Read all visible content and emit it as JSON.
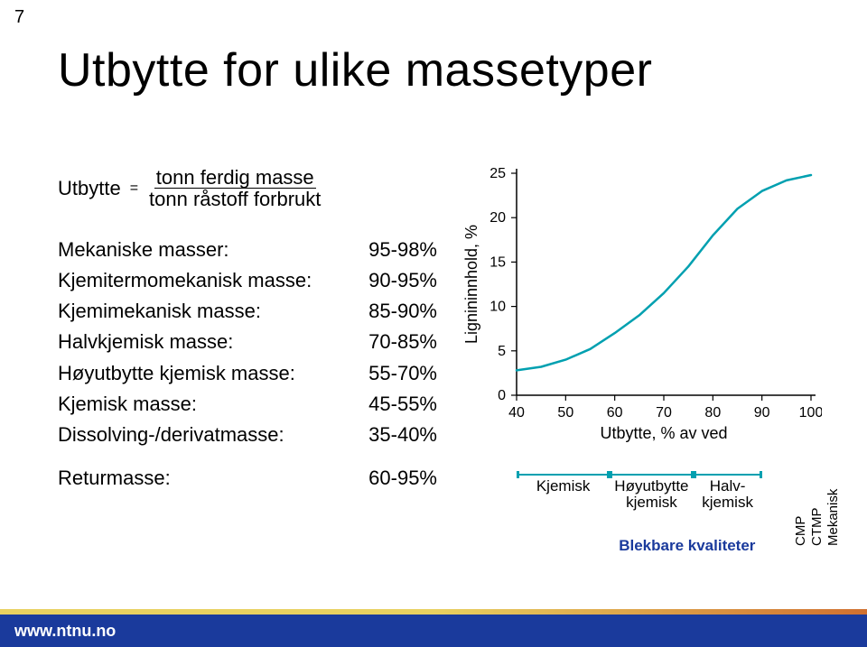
{
  "page_number": "7",
  "title": "Utbytte for ulike massetyper",
  "formula": {
    "lhs": "Utbytte",
    "num": "tonn ferdig masse",
    "den": "tonn råstoff forbrukt"
  },
  "rows": [
    {
      "label": "Mekaniske masser:",
      "value": "95-98%"
    },
    {
      "label": "Kjemitermomekanisk masse:",
      "value": "90-95%"
    },
    {
      "label": "Kjemimekanisk masse:",
      "value": "85-90%"
    },
    {
      "label": "Halvkjemisk masse:",
      "value": "70-85%"
    },
    {
      "label": "Høyutbytte kjemisk masse:",
      "value": "55-70%"
    },
    {
      "label": "Kjemisk masse:",
      "value": "45-55%"
    },
    {
      "label": "Dissolving-/derivatmasse:",
      "value": "35-40%"
    }
  ],
  "retur": {
    "label": "Returmasse:",
    "value": "60-95%"
  },
  "chart": {
    "type": "line",
    "xlabel": "Utbytte, % av ved",
    "ylabel": "Lignininnhold, %",
    "xlim": [
      40,
      100
    ],
    "ylim": [
      0,
      25
    ],
    "xticks": [
      40,
      50,
      60,
      70,
      80,
      90,
      100
    ],
    "yticks": [
      0,
      5,
      10,
      15,
      20,
      25
    ],
    "line_color": "#00a0b0",
    "line_width": 2.5,
    "axis_color": "#000000",
    "label_fontsize": 18,
    "tick_fontsize": 16,
    "points": [
      [
        40,
        2.8
      ],
      [
        45,
        3.2
      ],
      [
        50,
        4.0
      ],
      [
        55,
        5.2
      ],
      [
        60,
        7.0
      ],
      [
        65,
        9.0
      ],
      [
        70,
        11.5
      ],
      [
        75,
        14.5
      ],
      [
        80,
        18.0
      ],
      [
        85,
        21.0
      ],
      [
        90,
        23.0
      ],
      [
        95,
        24.2
      ],
      [
        100,
        24.8
      ]
    ]
  },
  "categories": [
    {
      "label_lines": [
        "Kjemisk"
      ],
      "x_start": 40,
      "x_end": 59
    },
    {
      "label_lines": [
        "Høyutbytte",
        "kjemisk"
      ],
      "x_start": 59,
      "x_end": 76
    },
    {
      "label_lines": [
        "Halv-",
        "kjemisk"
      ],
      "x_start": 76,
      "x_end": 90
    }
  ],
  "vert_categories": [
    "CMP",
    "CTMP",
    "Mekanisk"
  ],
  "blek_label": "Blekbare kvaliteter",
  "footer_text": "www.ntnu.no"
}
